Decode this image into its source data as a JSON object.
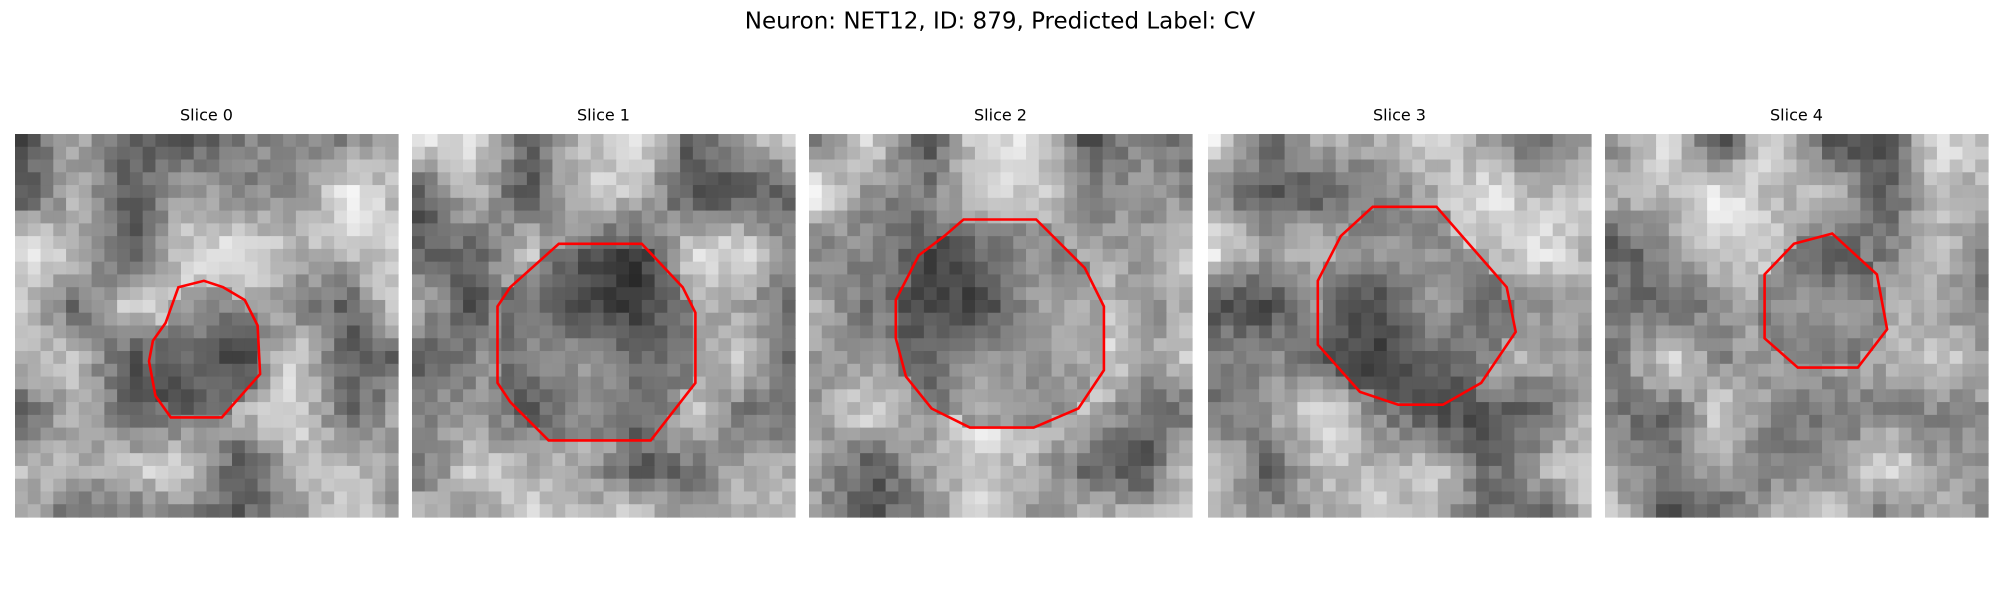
{
  "title": "Neuron: NET12, ID: 879, Predicted Label: CV",
  "panels": [
    {
      "title": "Slice 0"
    },
    {
      "title": "Slice 1"
    },
    {
      "title": "Slice 2"
    },
    {
      "title": "Slice 3"
    },
    {
      "title": "Slice 4"
    }
  ]
}
